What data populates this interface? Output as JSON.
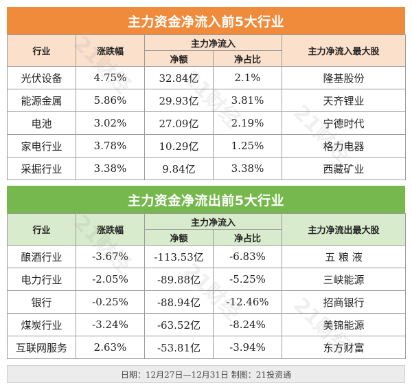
{
  "inflow": {
    "title": "主力资金净流入前5大行业",
    "headers": {
      "industry": "行业",
      "change": "涨跌幅",
      "group": "主力净流入",
      "amount": "净额",
      "ratio": "净占比",
      "top_stock": "主力净流入最大股"
    },
    "rows": [
      {
        "industry": "光伏设备",
        "change": "4.75%",
        "amount": "32.84亿",
        "ratio": "2.1%",
        "top_stock": "隆基股份"
      },
      {
        "industry": "能源金属",
        "change": "5.86%",
        "amount": "29.93亿",
        "ratio": "3.81%",
        "top_stock": "天齐锂业"
      },
      {
        "industry": "电池",
        "change": "3.02%",
        "amount": "27.09亿",
        "ratio": "2.19%",
        "top_stock": "宁德时代"
      },
      {
        "industry": "家电行业",
        "change": "3.78%",
        "amount": "10.29亿",
        "ratio": "1.25%",
        "top_stock": "格力电器"
      },
      {
        "industry": "采掘行业",
        "change": "3.38%",
        "amount": "9.84亿",
        "ratio": "3.38%",
        "top_stock": "西藏矿业"
      }
    ],
    "color": "#ef8b3b"
  },
  "outflow": {
    "title": "主力资金净流出前5大行业",
    "headers": {
      "industry": "行业",
      "change": "涨跌幅",
      "group": "主力净流入",
      "amount": "净额",
      "ratio": "净占比",
      "top_stock": "主力净流出最大股"
    },
    "rows": [
      {
        "industry": "酿酒行业",
        "change": "-3.67%",
        "amount": "-113.53亿",
        "ratio": "-6.83%",
        "top_stock": "五 粮 液"
      },
      {
        "industry": "电力行业",
        "change": "-2.05%",
        "amount": "-89.88亿",
        "ratio": "-5.25%",
        "top_stock": "三峡能源"
      },
      {
        "industry": "银行",
        "change": "-0.25%",
        "amount": "-88.94亿",
        "ratio": "-12.46%",
        "top_stock": "招商银行"
      },
      {
        "industry": "煤炭行业",
        "change": "-3.24%",
        "amount": "-63.52亿",
        "ratio": "-8.24%",
        "top_stock": "美锦能源"
      },
      {
        "industry": "互联网服务",
        "change": "2.63%",
        "amount": "-53.81亿",
        "ratio": "-3.94%",
        "top_stock": "东方财富"
      }
    ],
    "color": "#76b84d"
  },
  "footer": "日期：12月27日—12月31日  制图：21投资通",
  "watermark": "21财经"
}
